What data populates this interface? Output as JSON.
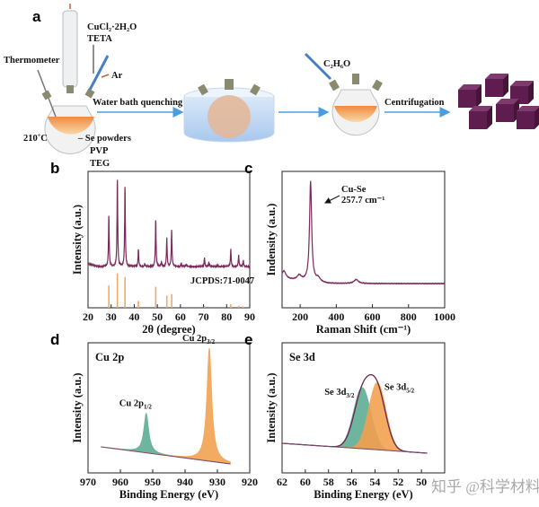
{
  "panel_a": {
    "label": "a",
    "thermometer": "Thermometer",
    "reagent_1": "CuCl₂·2H₂O",
    "reagent_2": "TETA",
    "gas": "Ar",
    "temperature": "210˚C",
    "mix_1": "– Se powders",
    "mix_2": "PVP",
    "mix_3": "TEG",
    "step_1": "Water bath quenching",
    "solvent": "C₂H₆O",
    "step_2": "Centrifugation",
    "colors": {
      "arrow": "#4a9ee0",
      "cube": "#5e1d4e",
      "solution": "#f3b777",
      "water": "#bcd6f2"
    }
  },
  "chart_data": [
    {
      "panel": "b",
      "type": "line",
      "xlabel": "2θ (degree)",
      "ylabel": "Intensity (a.u.)",
      "xlim": [
        20,
        90
      ],
      "xticks": [
        20,
        30,
        40,
        50,
        60,
        70,
        80,
        90
      ],
      "reference_label": "JCPDS:71-0047",
      "peaks_2theta": [
        29.0,
        32.7,
        36.0,
        41.8,
        44.6,
        49.3,
        51.8,
        54.1,
        56.2,
        60.3,
        62.5,
        70.4,
        72.3,
        76.2,
        81.8,
        85.2,
        87.2
      ],
      "peak_rel_intensity": [
        0.58,
        1.0,
        0.92,
        0.2,
        0.03,
        0.54,
        0.05,
        0.33,
        0.42,
        0.04,
        0.02,
        0.1,
        0.05,
        0.02,
        0.2,
        0.13,
        0.07
      ],
      "reference_2theta": [
        29.0,
        32.7,
        36.0,
        41.8,
        49.3,
        54.1,
        56.2,
        70.4,
        81.8,
        85.2,
        87.2
      ],
      "reference_rel_intensity": [
        0.55,
        0.85,
        0.76,
        0.17,
        0.52,
        0.3,
        0.34,
        0.05,
        0.09,
        0.05,
        0.03
      ],
      "colors": {
        "pattern": "#7a2a5a",
        "reference": "#f2a86a"
      }
    },
    {
      "panel": "c",
      "type": "line",
      "xlabel": "Raman Shift (cm⁻¹)",
      "ylabel": "Indensity (a.u.)",
      "xlim": [
        100,
        1000
      ],
      "xticks": [
        200,
        400,
        600,
        800,
        1000
      ],
      "annotation": [
        "Cu-Se",
        "257.7 cm⁻¹"
      ],
      "peaks_cm": [
        110,
        195,
        257.7,
        300,
        510
      ],
      "peak_rel_intensity": [
        0.08,
        0.05,
        1.0,
        0.04,
        0.04
      ],
      "colors": {
        "line": "#7a2a5a"
      }
    },
    {
      "panel": "d",
      "type": "area",
      "title": "Cu 2p",
      "xlabel": "Binding Energy (eV)",
      "ylabel": "Intensity (a.u.)",
      "xlim": [
        970,
        920
      ],
      "xticks": [
        970,
        960,
        950,
        940,
        930,
        920
      ],
      "data_range": [
        966,
        926
      ],
      "components": [
        {
          "name": "Cu 2p1/2",
          "label_main": "Cu 2p",
          "label_sub": "1/2",
          "center": 952.0,
          "rel_height": 0.35,
          "color": "#5fae96"
        },
        {
          "name": "Cu 2p3/2",
          "label_main": "Cu 2p",
          "label_sub": "3/2",
          "center": 932.5,
          "rel_height": 1.0,
          "color": "#f2a150"
        }
      ]
    },
    {
      "panel": "e",
      "type": "area",
      "title": "Se 3d",
      "xlabel": "Binding Energy (eV)",
      "ylabel": "Intensity (a.u.)",
      "xlim": [
        62,
        48
      ],
      "xticks": [
        62,
        60,
        58,
        56,
        54,
        52,
        50
      ],
      "data_range": [
        62,
        49.5
      ],
      "components": [
        {
          "name": "Se 3d3/2",
          "label_main": "Se 3d",
          "label_sub": "3/2",
          "center": 55.1,
          "rel_height": 0.62,
          "color": "#5fae96"
        },
        {
          "name": "Se 3d5/2",
          "label_main": "Se 3d",
          "label_sub": "5/2",
          "center": 53.8,
          "rel_height": 0.68,
          "color": "#f2a150"
        }
      ],
      "envelope_color": "#6a2550"
    }
  ],
  "watermark": "知乎 @科学材料站"
}
